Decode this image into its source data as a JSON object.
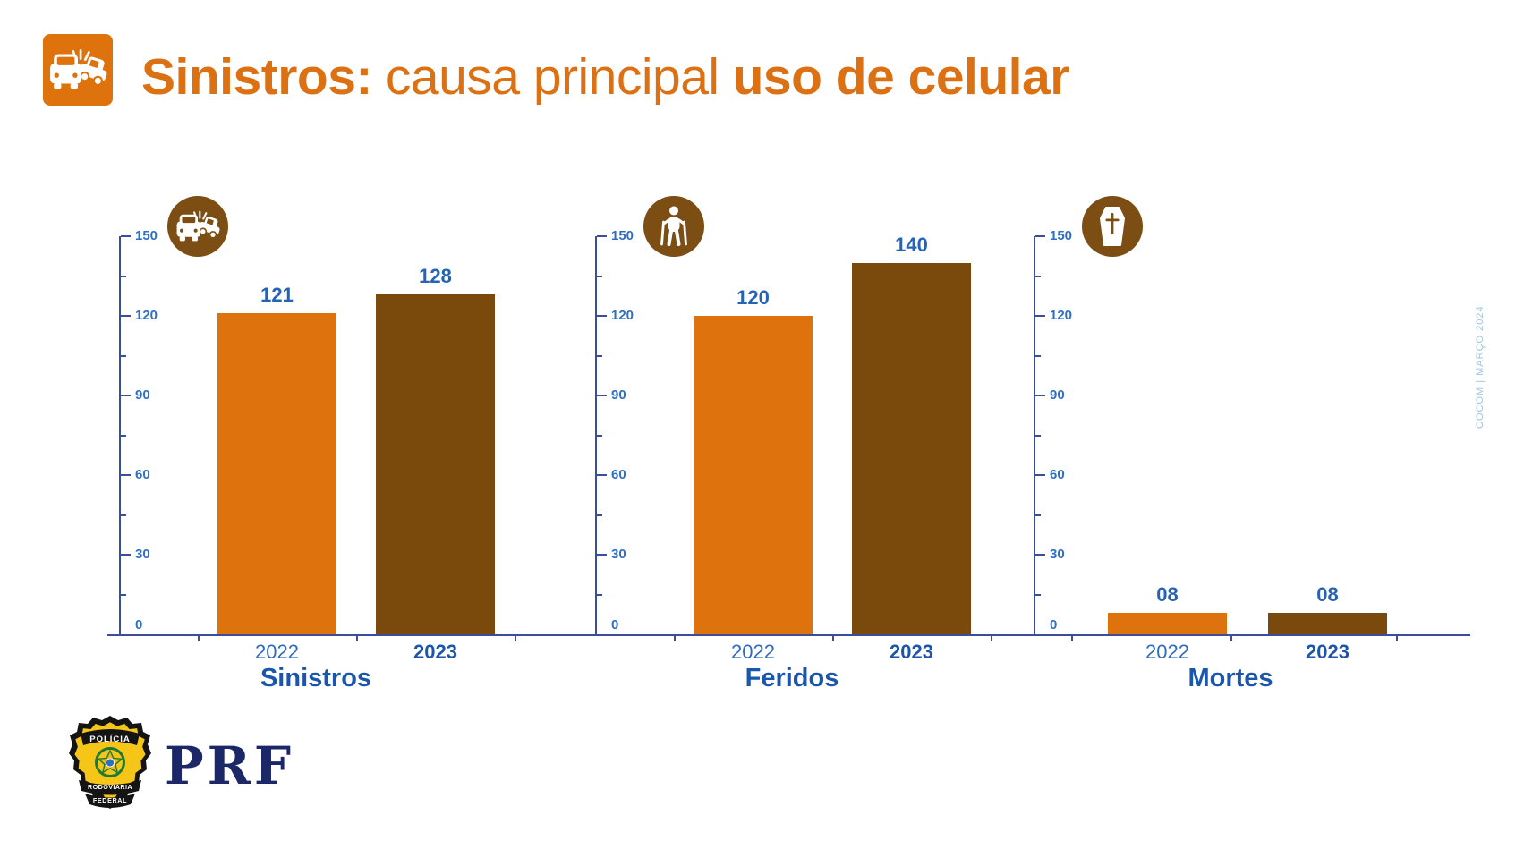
{
  "header": {
    "icon": "car-crash-icon",
    "title": {
      "bold_lead": "Sinistros:",
      "regular": "causa principal",
      "bold_tail": "uso de celular"
    }
  },
  "chart_data": [
    {
      "type": "bar",
      "title": "Sinistros",
      "icon": "car-crash-icon",
      "categories": [
        "2022",
        "2023"
      ],
      "values": [
        121,
        128
      ],
      "value_labels": [
        "121",
        "128"
      ],
      "ylim": [
        0,
        150
      ],
      "yticks": [
        0,
        30,
        60,
        90,
        120,
        150
      ],
      "minor_ytick_step": 15,
      "grid": false,
      "legend": "none",
      "bar_colors": [
        "#DE720D",
        "#7A4A0D"
      ]
    },
    {
      "type": "bar",
      "title": "Feridos",
      "icon": "injured-person-icon",
      "categories": [
        "2022",
        "2023"
      ],
      "values": [
        120,
        140
      ],
      "value_labels": [
        "120",
        "140"
      ],
      "ylim": [
        0,
        150
      ],
      "yticks": [
        0,
        30,
        60,
        90,
        120,
        150
      ],
      "minor_ytick_step": 15,
      "grid": false,
      "legend": "none",
      "bar_colors": [
        "#DE720D",
        "#7A4A0D"
      ]
    },
    {
      "type": "bar",
      "title": "Mortes",
      "icon": "coffin-icon",
      "categories": [
        "2022",
        "2023"
      ],
      "values": [
        8,
        8
      ],
      "value_labels": [
        "08",
        "08"
      ],
      "ylim": [
        0,
        150
      ],
      "yticks": [
        0,
        30,
        60,
        90,
        120,
        150
      ],
      "minor_ytick_step": 15,
      "grid": false,
      "legend": "none",
      "bar_colors": [
        "#DE720D",
        "#7A4A0D"
      ]
    }
  ],
  "footer": {
    "logo_text": "PRF",
    "badge": {
      "top_banner": "POLÍCIA",
      "middle_banner": "RODOVIÁRIA",
      "bottom_banner": "FEDERAL"
    }
  },
  "side_caption": "COCOM | MARÇO 2024",
  "colors": {
    "bar_2022_orange": "#DE720D",
    "bar_2023_brown": "#7A4A0D",
    "icon_circle_brown": "#7C4E14",
    "axis_indigo": "#3D4D9E",
    "tick_label_blue": "#2F6FC4",
    "value_label_blue": "#2563B4",
    "chart_title_blue": "#1956AC",
    "title_orange": "#DC7113",
    "caption_light_blue": "#A3C2E3",
    "logo_navy": "#1B2766",
    "badge_yellow": "#F5C518"
  }
}
